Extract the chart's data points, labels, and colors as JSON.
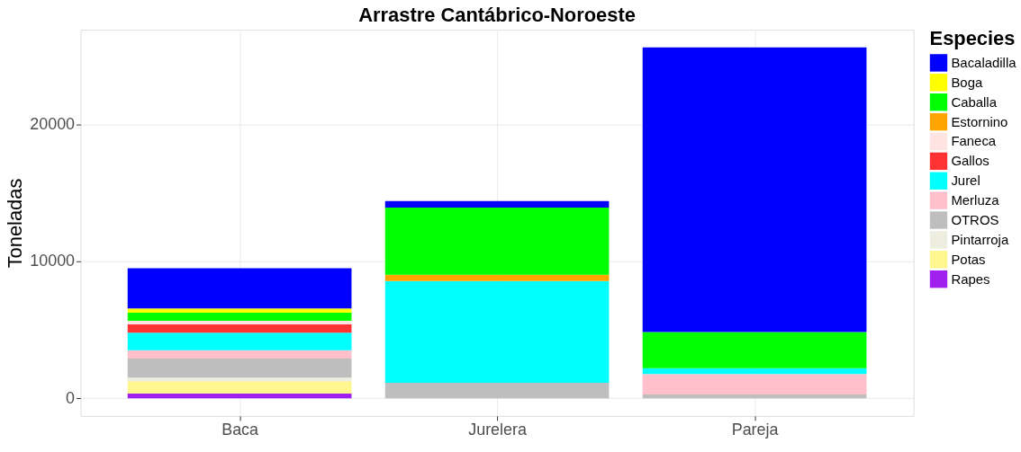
{
  "chart_data": {
    "type": "bar",
    "stacked": true,
    "title": "Arrastre Cantábrico-Noroeste",
    "ylabel": "Toneladas",
    "legend_title": "Especies",
    "categories": [
      "Baca",
      "Jurelera",
      "Pareja"
    ],
    "series": [
      {
        "name": "Rapes",
        "color": "#a020f0",
        "values": [
          350,
          0,
          0
        ]
      },
      {
        "name": "Potas",
        "color": "#fff68f",
        "values": [
          900,
          0,
          0
        ]
      },
      {
        "name": "Pintarroja",
        "color": "#eeeee0",
        "values": [
          260,
          0,
          0
        ]
      },
      {
        "name": "OTROS",
        "color": "#bebebe",
        "values": [
          1400,
          1140,
          280
        ]
      },
      {
        "name": "Merluza",
        "color": "#ffc0cb",
        "values": [
          600,
          0,
          1500
        ]
      },
      {
        "name": "Jurel",
        "color": "#00ffff",
        "values": [
          1290,
          7420,
          430
        ]
      },
      {
        "name": "Gallos",
        "color": "#ff3333",
        "values": [
          600,
          0,
          0
        ]
      },
      {
        "name": "Faneca",
        "color": "#ffe4e1",
        "values": [
          260,
          0,
          0
        ]
      },
      {
        "name": "Estornino",
        "color": "#ffa500",
        "values": [
          0,
          470,
          0
        ]
      },
      {
        "name": "Caballa",
        "color": "#00ff00",
        "values": [
          600,
          4900,
          2640
        ]
      },
      {
        "name": "Boga",
        "color": "#ffff00",
        "values": [
          300,
          0,
          0
        ]
      },
      {
        "name": "Bacaladilla",
        "color": "#0000ff",
        "values": [
          2930,
          470,
          20770
        ]
      }
    ],
    "ylim": [
      -1280,
      26900
    ],
    "yticks": [
      0,
      10000,
      20000
    ],
    "grid": true,
    "legend": "right"
  }
}
